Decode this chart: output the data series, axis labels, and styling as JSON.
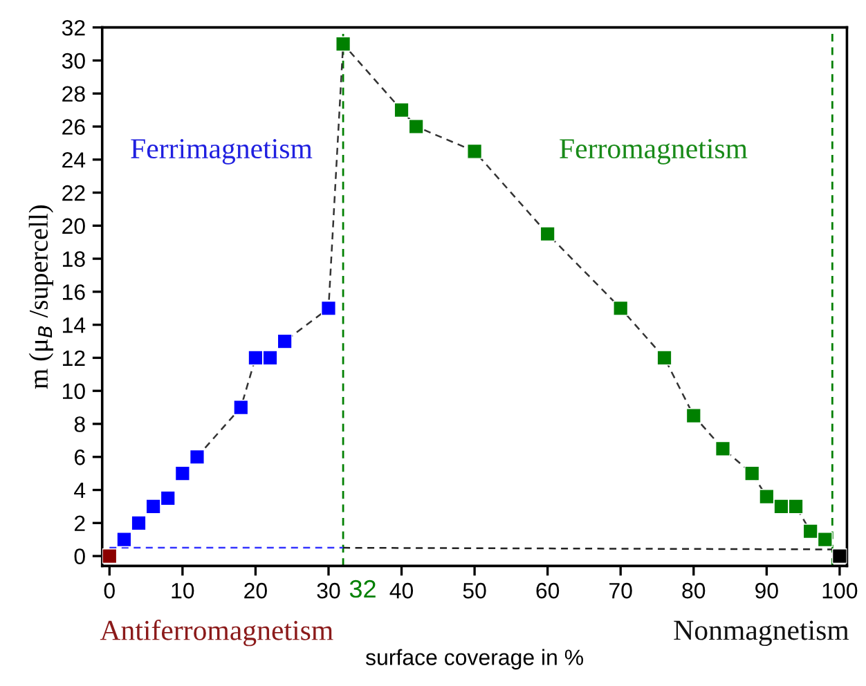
{
  "chart_data": {
    "type": "scatter",
    "xlabel": "surface coverage in %",
    "ylabel": "m (μ$_{B}$ /supercell)",
    "xlim": [
      -1,
      101
    ],
    "ylim": [
      -0.6,
      32
    ],
    "xticks": [
      0,
      10,
      20,
      30,
      40,
      50,
      60,
      70,
      80,
      90,
      100
    ],
    "yticks": [
      0,
      2,
      4,
      6,
      8,
      10,
      12,
      14,
      16,
      18,
      20,
      22,
      24,
      26,
      28,
      30,
      32
    ],
    "grid": false,
    "legend": false,
    "marker": "square",
    "series": [
      {
        "type": "line",
        "color": "#333333",
        "line_style": "dashed",
        "marker": "none",
        "x": [
          12,
          18,
          20,
          22,
          24,
          30,
          32,
          40,
          42,
          50,
          60,
          70,
          76,
          80,
          84,
          88,
          90,
          92,
          94,
          96,
          98
        ],
        "values": [
          6,
          9,
          12,
          12,
          13,
          15,
          31,
          27,
          26,
          24.5,
          19.5,
          15,
          12,
          8.5,
          6.5,
          5,
          3.6,
          3,
          3,
          1.5,
          1
        ]
      },
      {
        "type": "line",
        "color": "#3333ff",
        "line_style": "dashed",
        "marker": "none",
        "x": [
          0,
          32
        ],
        "values": [
          0.5,
          0.5
        ]
      },
      {
        "type": "line",
        "color": "#222222",
        "line_style": "dashed",
        "marker": "none",
        "x": [
          32,
          100
        ],
        "values": [
          0.5,
          0.4
        ]
      },
      {
        "color": "#8b0000",
        "x": [
          0
        ],
        "values": [
          0
        ]
      },
      {
        "color": "#0000ff",
        "x": [
          2,
          4,
          6,
          8,
          10,
          12,
          18,
          20,
          22,
          24,
          30
        ],
        "values": [
          1,
          2,
          3,
          3.5,
          5,
          6,
          9,
          12,
          12,
          13,
          15
        ]
      },
      {
        "color": "#008000",
        "x": [
          32,
          40,
          42,
          50,
          60,
          70,
          76,
          80,
          84,
          88,
          90,
          92,
          94,
          96,
          98
        ],
        "values": [
          31,
          27,
          26,
          24.5,
          19.5,
          15,
          12,
          8.5,
          6.5,
          5,
          3.6,
          3,
          3,
          1.5,
          1
        ]
      },
      {
        "color": "#000000",
        "x": [
          100
        ],
        "values": [
          0
        ]
      }
    ],
    "ref_lines": [
      {
        "axis": "x",
        "value": 32,
        "label": "32",
        "color": "#008000",
        "line_style": "dashed"
      },
      {
        "axis": "x",
        "value": 99,
        "color": "#008000",
        "line_style": "dashed"
      }
    ],
    "annotations": [
      "Ferrimagnetism",
      "Ferromagnetism",
      {
        "text": "Antiferromagnetism",
        "x": 0,
        "y": 0
      },
      {
        "text": "Nonmagnetism",
        "x": 100,
        "y": 0
      }
    ]
  }
}
